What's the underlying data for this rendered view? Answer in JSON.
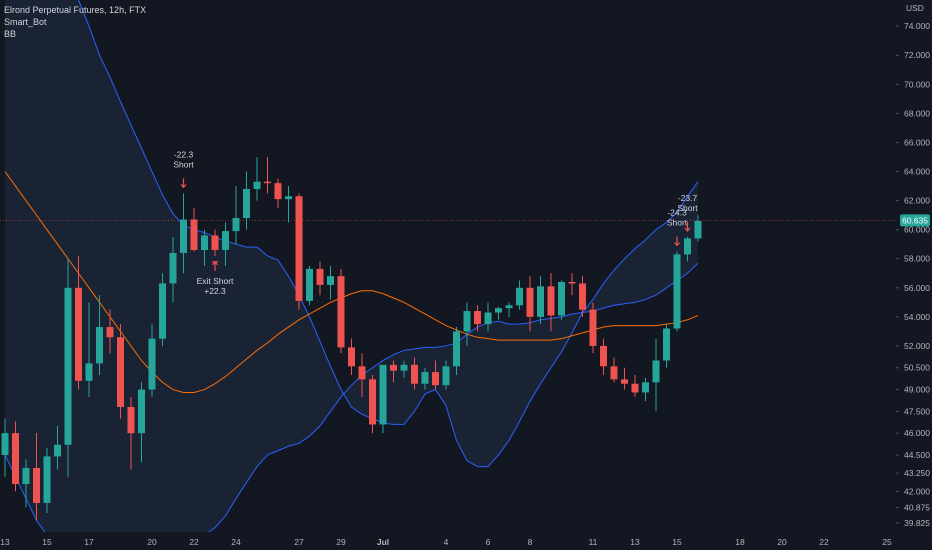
{
  "legend": {
    "symbol": "Elrond Perpetual Futures, 12h, FTX",
    "indicator1": "Smart_Bot",
    "indicator2": "BB"
  },
  "colors": {
    "background": "#131722",
    "up": "#26a69a",
    "down": "#ef5350",
    "bb_band": "#2962ff",
    "bb_basis": "#ff6d00",
    "bb_fill": "#1b2536",
    "grid": "#1e222d",
    "price_label_bg": "#26a69a",
    "annotation_arrow": "#ef5350"
  },
  "chart_data": {
    "type": "candlestick",
    "ylabel": "USD",
    "ylim": [
      39.2,
      75.8
    ],
    "y_ticks": [
      39.825,
      40.875,
      42.0,
      43.25,
      44.5,
      46.0,
      47.5,
      49.0,
      50.5,
      52.0,
      54.0,
      56.0,
      58.0,
      60.0,
      62.0,
      64.0,
      66.0,
      68.0,
      70.0,
      72.0,
      74.0
    ],
    "y_tick_labels": [
      "39.825",
      "40.875",
      "42.000",
      "43.250",
      "44.500",
      "46.000",
      "47.500",
      "49.000",
      "50.500",
      "52.000",
      "54.000",
      "56.000",
      "58.000",
      "60.000",
      "62.000",
      "64.000",
      "66.000",
      "68.000",
      "70.000",
      "72.000",
      "74.000"
    ],
    "x_tick_labels": [
      {
        "bar": 0,
        "label": "13"
      },
      {
        "bar": 4,
        "label": "15"
      },
      {
        "bar": 8,
        "label": "17"
      },
      {
        "bar": 14,
        "label": "20"
      },
      {
        "bar": 18,
        "label": "22"
      },
      {
        "bar": 22,
        "label": "24"
      },
      {
        "bar": 28,
        "label": "27"
      },
      {
        "bar": 32,
        "label": "29"
      },
      {
        "bar": 36,
        "label": "Jul"
      },
      {
        "bar": 42,
        "label": "4"
      },
      {
        "bar": 46,
        "label": "6"
      },
      {
        "bar": 50,
        "label": "8"
      },
      {
        "bar": 56,
        "label": "11"
      },
      {
        "bar": 60,
        "label": "13"
      },
      {
        "bar": 64,
        "label": "15"
      },
      {
        "bar": 70,
        "label": "18"
      },
      {
        "bar": 74,
        "label": "20"
      },
      {
        "bar": 78,
        "label": "22"
      },
      {
        "bar": 84,
        "label": "25"
      }
    ],
    "current_price": 60.635,
    "current_price_label": "60.635",
    "candles": [
      {
        "o": 44.5,
        "h": 47.0,
        "l": 43.0,
        "c": 46.0
      },
      {
        "o": 46.0,
        "h": 46.8,
        "l": 42.0,
        "c": 42.5
      },
      {
        "o": 42.5,
        "h": 44.2,
        "l": 40.9,
        "c": 43.6
      },
      {
        "o": 43.6,
        "h": 46.0,
        "l": 40.0,
        "c": 41.2
      },
      {
        "o": 41.2,
        "h": 45.0,
        "l": 40.5,
        "c": 44.4
      },
      {
        "o": 44.4,
        "h": 46.5,
        "l": 43.5,
        "c": 45.2
      },
      {
        "o": 45.2,
        "h": 58.0,
        "l": 43.0,
        "c": 56.0
      },
      {
        "o": 56.0,
        "h": 58.2,
        "l": 49.0,
        "c": 49.6
      },
      {
        "o": 49.6,
        "h": 55.0,
        "l": 48.5,
        "c": 50.8
      },
      {
        "o": 50.8,
        "h": 55.5,
        "l": 50.0,
        "c": 53.3
      },
      {
        "o": 53.3,
        "h": 54.5,
        "l": 51.5,
        "c": 52.6
      },
      {
        "o": 52.6,
        "h": 53.5,
        "l": 47.0,
        "c": 47.8
      },
      {
        "o": 47.8,
        "h": 48.5,
        "l": 43.5,
        "c": 46.0
      },
      {
        "o": 46.0,
        "h": 49.5,
        "l": 44.0,
        "c": 49.0
      },
      {
        "o": 49.0,
        "h": 53.5,
        "l": 48.5,
        "c": 52.5
      },
      {
        "o": 52.5,
        "h": 57.0,
        "l": 52.0,
        "c": 56.3
      },
      {
        "o": 56.3,
        "h": 59.5,
        "l": 55.0,
        "c": 58.4
      },
      {
        "o": 58.4,
        "h": 62.5,
        "l": 57.0,
        "c": 60.7
      },
      {
        "o": 60.7,
        "h": 61.5,
        "l": 58.5,
        "c": 58.6
      },
      {
        "o": 58.6,
        "h": 60.0,
        "l": 57.5,
        "c": 59.6
      },
      {
        "o": 59.6,
        "h": 60.0,
        "l": 58.2,
        "c": 58.6
      },
      {
        "o": 58.6,
        "h": 60.5,
        "l": 57.5,
        "c": 59.9
      },
      {
        "o": 59.9,
        "h": 63.0,
        "l": 59.0,
        "c": 60.8
      },
      {
        "o": 60.8,
        "h": 64.0,
        "l": 60.0,
        "c": 62.8
      },
      {
        "o": 62.8,
        "h": 65.0,
        "l": 62.0,
        "c": 63.3
      },
      {
        "o": 63.3,
        "h": 65.0,
        "l": 62.5,
        "c": 63.2
      },
      {
        "o": 63.2,
        "h": 63.5,
        "l": 61.5,
        "c": 62.1
      },
      {
        "o": 62.1,
        "h": 63.0,
        "l": 60.5,
        "c": 62.3
      },
      {
        "o": 62.3,
        "h": 62.5,
        "l": 54.5,
        "c": 55.1
      },
      {
        "o": 55.1,
        "h": 57.5,
        "l": 54.8,
        "c": 57.3
      },
      {
        "o": 57.3,
        "h": 57.8,
        "l": 55.5,
        "c": 56.2
      },
      {
        "o": 56.2,
        "h": 57.5,
        "l": 55.2,
        "c": 56.8
      },
      {
        "o": 56.8,
        "h": 57.3,
        "l": 51.5,
        "c": 51.9
      },
      {
        "o": 51.9,
        "h": 52.5,
        "l": 50.0,
        "c": 50.6
      },
      {
        "o": 50.6,
        "h": 51.5,
        "l": 48.5,
        "c": 49.7
      },
      {
        "o": 49.7,
        "h": 50.0,
        "l": 46.0,
        "c": 46.6
      },
      {
        "o": 46.6,
        "h": 50.5,
        "l": 46.0,
        "c": 50.7
      },
      {
        "o": 50.7,
        "h": 51.0,
        "l": 49.5,
        "c": 50.3
      },
      {
        "o": 50.3,
        "h": 51.0,
        "l": 49.8,
        "c": 50.7
      },
      {
        "o": 50.7,
        "h": 51.2,
        "l": 49.0,
        "c": 49.4
      },
      {
        "o": 49.4,
        "h": 50.5,
        "l": 49.0,
        "c": 50.2
      },
      {
        "o": 50.2,
        "h": 51.0,
        "l": 49.0,
        "c": 49.3
      },
      {
        "o": 49.3,
        "h": 51.0,
        "l": 49.0,
        "c": 50.6
      },
      {
        "o": 50.6,
        "h": 53.3,
        "l": 50.0,
        "c": 53.0
      },
      {
        "o": 53.0,
        "h": 55.0,
        "l": 52.0,
        "c": 54.4
      },
      {
        "o": 54.4,
        "h": 54.8,
        "l": 53.0,
        "c": 53.5
      },
      {
        "o": 53.5,
        "h": 55.0,
        "l": 53.0,
        "c": 54.3
      },
      {
        "o": 54.3,
        "h": 54.7,
        "l": 53.8,
        "c": 54.6
      },
      {
        "o": 54.6,
        "h": 55.0,
        "l": 54.0,
        "c": 54.8
      },
      {
        "o": 54.8,
        "h": 56.5,
        "l": 54.5,
        "c": 56.0
      },
      {
        "o": 56.0,
        "h": 56.8,
        "l": 53.0,
        "c": 54.0
      },
      {
        "o": 54.0,
        "h": 56.8,
        "l": 53.5,
        "c": 56.1
      },
      {
        "o": 56.1,
        "h": 57.0,
        "l": 53.0,
        "c": 54.1
      },
      {
        "o": 54.1,
        "h": 56.5,
        "l": 53.8,
        "c": 56.4
      },
      {
        "o": 56.4,
        "h": 57.0,
        "l": 55.5,
        "c": 56.3
      },
      {
        "o": 56.3,
        "h": 56.8,
        "l": 54.0,
        "c": 54.5
      },
      {
        "o": 54.5,
        "h": 55.0,
        "l": 51.5,
        "c": 52.0
      },
      {
        "o": 52.0,
        "h": 52.5,
        "l": 50.0,
        "c": 50.6
      },
      {
        "o": 50.6,
        "h": 51.2,
        "l": 49.5,
        "c": 49.7
      },
      {
        "o": 49.7,
        "h": 50.5,
        "l": 49.0,
        "c": 49.4
      },
      {
        "o": 49.4,
        "h": 50.0,
        "l": 48.5,
        "c": 48.8
      },
      {
        "o": 48.8,
        "h": 49.8,
        "l": 48.2,
        "c": 49.5
      },
      {
        "o": 49.5,
        "h": 52.5,
        "l": 47.5,
        "c": 51.0
      },
      {
        "o": 51.0,
        "h": 53.5,
        "l": 50.5,
        "c": 53.2
      },
      {
        "o": 53.2,
        "h": 58.5,
        "l": 53.0,
        "c": 58.3
      },
      {
        "o": 58.3,
        "h": 59.5,
        "l": 57.8,
        "c": 59.4
      },
      {
        "o": 59.4,
        "h": 61.0,
        "l": 59.2,
        "c": 60.6
      }
    ],
    "bb_upper": [
      81.0,
      81.0,
      81.0,
      81.0,
      81.0,
      79.5,
      77.5,
      75.8,
      74.0,
      72.0,
      70.5,
      68.8,
      67.2,
      65.6,
      64.0,
      62.4,
      61.1,
      60.3,
      60.0,
      59.8,
      59.5,
      59.2,
      59.0,
      58.8,
      58.8,
      58.2,
      57.9,
      56.8,
      55.5,
      54.0,
      52.3,
      50.6,
      49.0,
      47.8,
      47.3,
      47.0,
      46.7,
      46.6,
      46.6,
      47.5,
      48.7,
      49.0,
      47.9,
      45.5,
      44.1,
      43.7,
      43.7,
      44.5,
      45.5,
      46.8,
      48.2,
      49.4,
      50.5,
      51.6,
      52.9,
      54.3,
      55.2,
      56.3,
      57.2,
      58.0,
      58.7,
      59.3,
      60.0,
      60.5,
      61.2,
      62.3,
      63.3
    ],
    "bb_lower": [
      44.5,
      43.0,
      41.5,
      40.0,
      39.0,
      39.0,
      39.0,
      39.0,
      39.0,
      39.0,
      39.0,
      39.0,
      39.0,
      39.0,
      39.0,
      39.0,
      39.0,
      39.0,
      39.0,
      39.0,
      39.5,
      40.3,
      41.5,
      42.6,
      43.7,
      44.5,
      44.8,
      45.1,
      45.3,
      45.8,
      46.5,
      47.5,
      48.5,
      49.3,
      50.0,
      50.5,
      51.0,
      51.4,
      51.7,
      51.8,
      51.9,
      51.9,
      52.0,
      52.2,
      52.8,
      53.3,
      53.6,
      53.7,
      53.5,
      53.5,
      53.6,
      53.8,
      53.9,
      54.0,
      54.2,
      54.3,
      54.4,
      54.6,
      54.8,
      54.9,
      55.0,
      55.2,
      55.5,
      56.0,
      56.5,
      57.0,
      57.7
    ],
    "bb_basis": [
      64.0,
      63.0,
      62.0,
      61.0,
      60.0,
      59.0,
      58.0,
      57.0,
      56.0,
      55.0,
      54.0,
      53.0,
      52.0,
      51.0,
      50.2,
      49.5,
      49.0,
      48.8,
      48.8,
      49.0,
      49.4,
      49.9,
      50.5,
      51.1,
      51.7,
      52.2,
      52.8,
      53.3,
      53.8,
      54.2,
      54.6,
      55.0,
      55.3,
      55.6,
      55.8,
      55.8,
      55.6,
      55.3,
      55.0,
      54.6,
      54.2,
      53.8,
      53.4,
      53.1,
      52.8,
      52.6,
      52.5,
      52.4,
      52.4,
      52.4,
      52.4,
      52.4,
      52.4,
      52.5,
      52.7,
      52.9,
      53.1,
      53.3,
      53.4,
      53.4,
      53.4,
      53.4,
      53.4,
      53.5,
      53.6,
      53.8,
      54.1
    ],
    "annotations": [
      {
        "bar": 17,
        "position": "above",
        "lines": [
          "-22.3",
          "Short"
        ],
        "arrow": "down"
      },
      {
        "bar": 20,
        "position": "below",
        "lines": [
          "Exit Short",
          "+22.3"
        ],
        "arrow": "up"
      },
      {
        "bar": 64,
        "position": "above",
        "lines": [
          "-24.3",
          "Short"
        ],
        "arrow": "down"
      },
      {
        "bar": 65,
        "position": "above",
        "lines": [
          "-23.7",
          "Short"
        ],
        "arrow": "down"
      }
    ]
  }
}
